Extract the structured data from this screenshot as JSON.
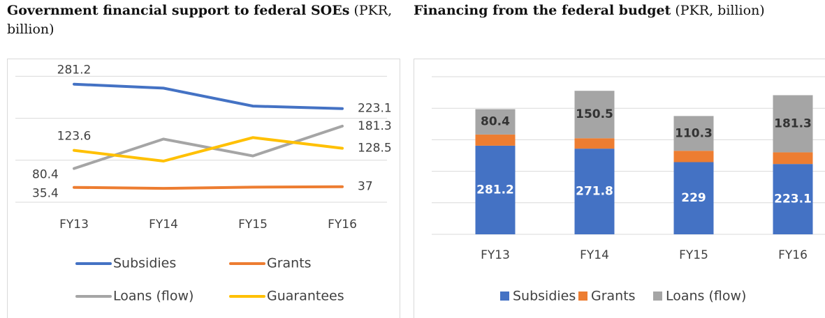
{
  "chart_data": [
    {
      "type": "line",
      "title": "Government financial support to federal SOEs",
      "subtitle": "(PKR, billion)",
      "categories": [
        "FY13",
        "FY14",
        "FY15",
        "FY16"
      ],
      "series": [
        {
          "name": "Subsidies",
          "color": "#4472c4",
          "values": [
            281.2,
            271.8,
            229,
            223.1
          ]
        },
        {
          "name": "Grants",
          "color": "#ed7d31",
          "values": [
            35.4,
            33,
            36,
            37
          ]
        },
        {
          "name": "Loans (flow)",
          "color": "#a5a5a5",
          "values": [
            80.4,
            150.5,
            110.3,
            181.3
          ]
        },
        {
          "name": "Guarantees",
          "color": "#ffc000",
          "values": [
            123.6,
            98,
            154,
            128.5
          ]
        }
      ],
      "ylim": [
        0,
        300
      ],
      "yticks": [
        0,
        100,
        200,
        300
      ],
      "grid": true,
      "legend": "bottom"
    },
    {
      "type": "stacked_bar",
      "title": "Financing from the federal budget",
      "subtitle": "(PKR, billion)",
      "categories": [
        "FY13",
        "FY14",
        "FY15",
        "FY16"
      ],
      "series": [
        {
          "name": "Subsidies",
          "color": "#4472c4",
          "values": [
            281.2,
            271.8,
            229,
            223.1
          ]
        },
        {
          "name": "Grants",
          "color": "#ed7d31",
          "values": [
            35.4,
            33,
            36,
            37
          ]
        },
        {
          "name": "Loans (flow)",
          "color": "#a5a5a5",
          "values": [
            80.4,
            150.5,
            110.3,
            181.3
          ]
        }
      ],
      "ylim": [
        0,
        500
      ],
      "yticks": [
        0,
        100,
        200,
        300,
        400,
        500
      ],
      "grid": true,
      "legend": "bottom"
    }
  ]
}
